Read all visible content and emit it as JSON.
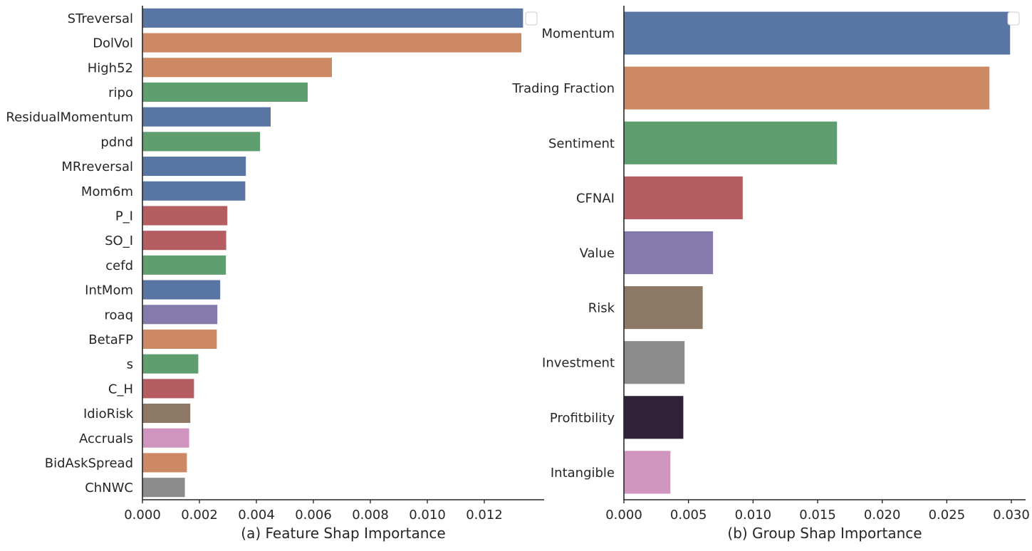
{
  "chart_data": [
    {
      "type": "bar",
      "orientation": "horizontal",
      "xlabel": "(a) Feature Shap Importance",
      "ylabel": "",
      "xlim": [
        0,
        0.0141
      ],
      "xticks": [
        "0.000",
        "0.002",
        "0.004",
        "0.006",
        "0.008",
        "0.010",
        "0.012"
      ],
      "legend": "top-right (empty)",
      "grid": false,
      "categories": [
        "STreversal",
        "DolVol",
        "High52",
        "ripo",
        "ResidualMomentum",
        "pdnd",
        "MRreversal",
        "Mom6m",
        "P_I",
        "SO_I",
        "cefd",
        "IntMom",
        "roaq",
        "BetaFP",
        "s",
        "C_H",
        "IdioRisk",
        "Accruals",
        "BidAskSpread",
        "ChNWC"
      ],
      "values": [
        0.01336,
        0.0133,
        0.00665,
        0.0058,
        0.0045,
        0.00413,
        0.00363,
        0.00361,
        0.00298,
        0.00294,
        0.00293,
        0.00273,
        0.00263,
        0.00261,
        0.00196,
        0.00181,
        0.00168,
        0.00164,
        0.00156,
        0.00149
      ],
      "colors": [
        "#5875a4",
        "#cc8963",
        "#cc8963",
        "#5f9e6e",
        "#5875a4",
        "#5f9e6e",
        "#5875a4",
        "#5875a4",
        "#b55d60",
        "#b55d60",
        "#5f9e6e",
        "#5875a4",
        "#857aab",
        "#cc8963",
        "#5f9e6e",
        "#b55d60",
        "#8d7866",
        "#d095bf",
        "#cc8963",
        "#8c8c8c"
      ]
    },
    {
      "type": "bar",
      "orientation": "horizontal",
      "xlabel": "(b) Group Shap Importance",
      "ylabel": "",
      "xlim": [
        0,
        0.0311
      ],
      "xticks": [
        "0.000",
        "0.005",
        "0.010",
        "0.015",
        "0.020",
        "0.025",
        "0.030"
      ],
      "legend": "top-right (empty)",
      "grid": false,
      "categories": [
        "Momentum",
        "Trading Fraction",
        "Sentiment",
        "CFNAI",
        "Value",
        "Risk",
        "Investment",
        "Profitbility",
        "Intangible"
      ],
      "values": [
        0.0299,
        0.0283,
        0.0165,
        0.0092,
        0.0069,
        0.0061,
        0.0047,
        0.0046,
        0.0036
      ],
      "colors": [
        "#5875a4",
        "#cc8963",
        "#5f9e6e",
        "#b55d60",
        "#857aab",
        "#8d7866",
        "#8c8c8c",
        "#2e2139",
        "#d095bf"
      ]
    }
  ]
}
